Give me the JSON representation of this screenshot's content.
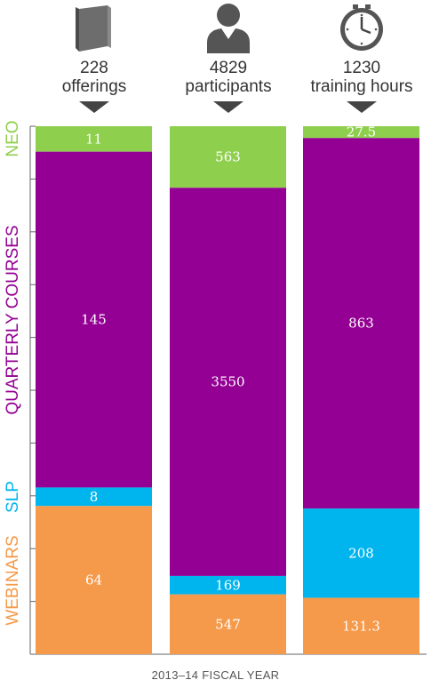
{
  "headers": [
    {
      "number": "228",
      "unit": "offerings",
      "icon": "book-icon"
    },
    {
      "number": "4829",
      "unit": "participants",
      "icon": "person-icon"
    },
    {
      "number": "1230",
      "unit": "training hours",
      "icon": "clock-icon"
    }
  ],
  "footer": "2013–14 FISCAL YEAR",
  "colors": {
    "NEO": "#8fcf4e",
    "QUARTERLY COURSES": "#930093",
    "SLP": "#00b4ed",
    "WEBINARS": "#f5994a"
  },
  "chart_data": {
    "type": "bar",
    "stacked": true,
    "normalized": true,
    "title": "",
    "xlabel": "2013–14 FISCAL YEAR",
    "ylabel": "",
    "categories": [
      "offerings",
      "participants",
      "training hours"
    ],
    "series": [
      {
        "name": "NEO",
        "values": [
          11,
          563,
          27.5
        ],
        "labels": [
          "11",
          "563",
          "27.5"
        ]
      },
      {
        "name": "QUARTERLY COURSES",
        "values": [
          145,
          3550,
          863
        ],
        "labels": [
          "145",
          "3550",
          "863"
        ]
      },
      {
        "name": "SLP",
        "values": [
          8,
          169,
          208
        ],
        "labels": [
          "8",
          "169",
          "208"
        ]
      },
      {
        "name": "WEBINARS",
        "values": [
          64,
          547,
          131.3
        ],
        "labels": [
          "64",
          "547",
          "131.3"
        ]
      }
    ],
    "legend": "left-vertical",
    "grid": false
  }
}
